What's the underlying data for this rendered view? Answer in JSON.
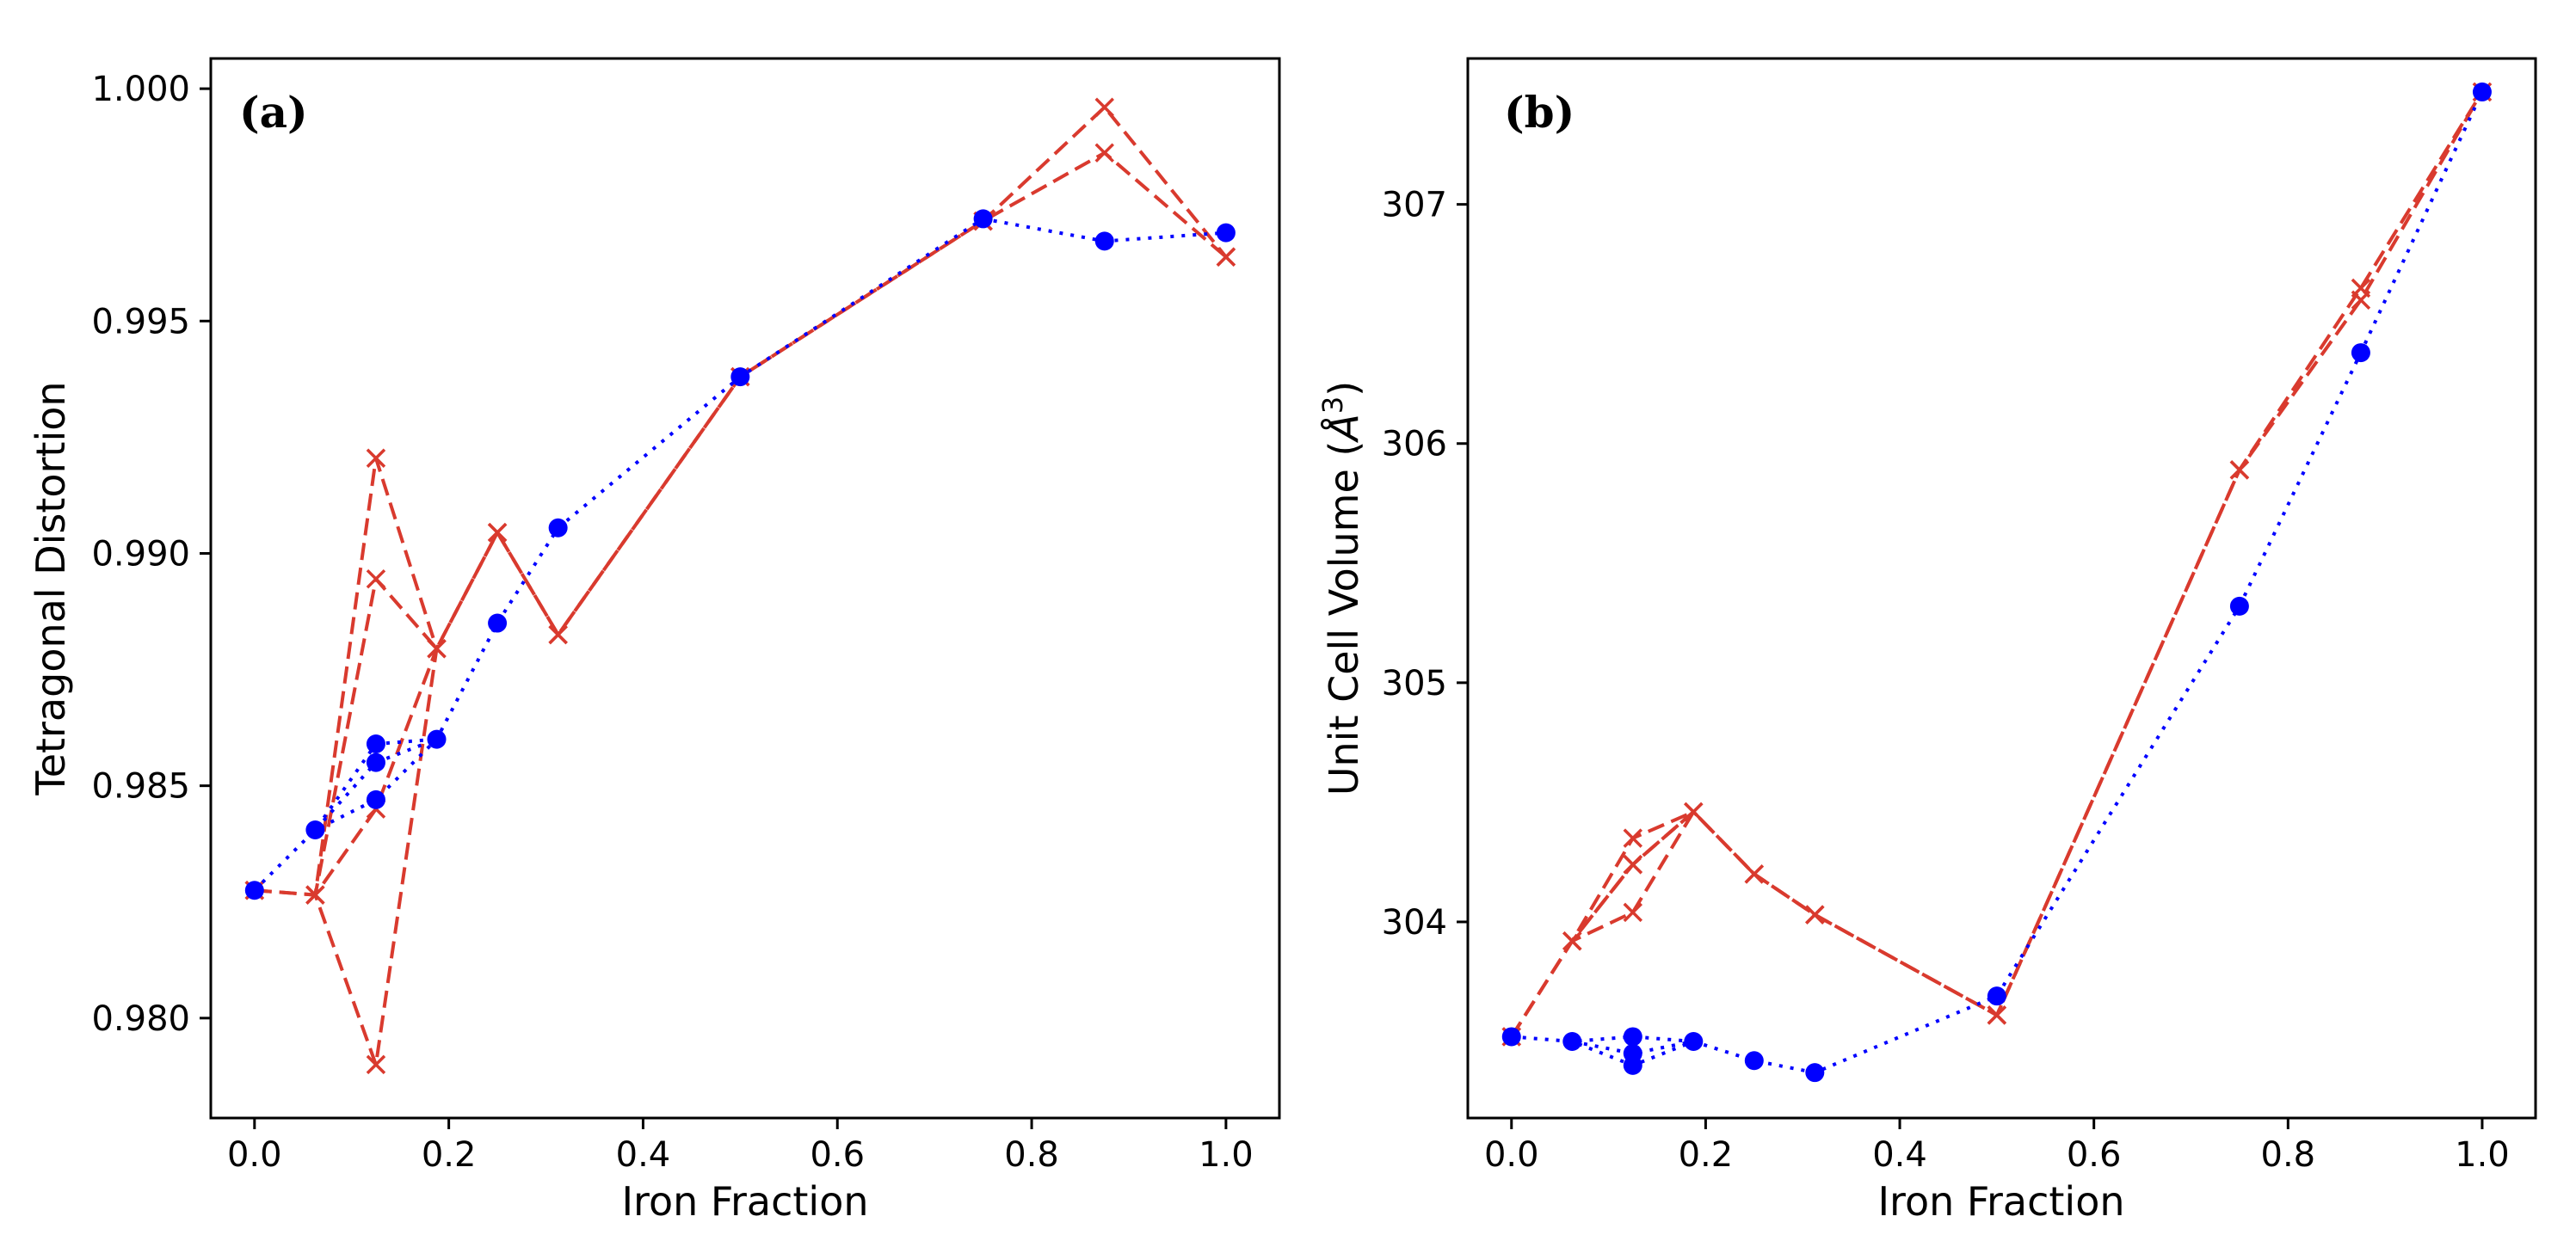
{
  "chart_data": [
    {
      "id": "a",
      "type": "line",
      "panel_label": "(a)",
      "xlabel": "Iron Fraction",
      "ylabel": "Tetragonal Distortion",
      "xlim": [
        -0.045,
        1.055
      ],
      "ylim": [
        0.97785,
        1.00065
      ],
      "xticks": [
        0.0,
        0.2,
        0.4,
        0.6,
        0.8,
        1.0
      ],
      "xtick_labels": [
        "0.0",
        "0.2",
        "0.4",
        "0.6",
        "0.8",
        "1.0"
      ],
      "yticks": [
        0.98,
        0.985,
        0.99,
        0.995,
        1.0
      ],
      "ytick_labels": [
        "0.980",
        "0.985",
        "0.990",
        "0.995",
        "1.000"
      ],
      "series": [
        {
          "name": "blue circles",
          "color": "#0000ff",
          "marker": "circle",
          "linestyle": "dotted",
          "points": [
            [
              0.0,
              0.98275
            ],
            [
              0.0625,
              0.98405
            ],
            [
              0.125,
              0.9859
            ],
            [
              0.1875,
              0.986
            ],
            [
              0.125,
              0.9855
            ],
            [
              0.0625,
              0.98405
            ],
            [
              0.125,
              0.9847
            ],
            [
              0.1875,
              0.986
            ],
            [
              0.25,
              0.9885
            ],
            [
              0.3125,
              0.99055
            ],
            [
              0.5,
              0.9938
            ],
            [
              0.75,
              0.9972
            ],
            [
              0.875,
              0.99672
            ],
            [
              1.0,
              0.9969
            ]
          ]
        },
        {
          "name": "red crosses (path 1)",
          "color": "#d93a2e",
          "marker": "x",
          "linestyle": "dashed",
          "points": [
            [
              0.0,
              0.98275
            ],
            [
              0.0625,
              0.98265
            ],
            [
              0.125,
              0.99205
            ],
            [
              0.1875,
              0.98795
            ],
            [
              0.125,
              0.979
            ],
            [
              0.0625,
              0.98265
            ],
            [
              0.125,
              0.98945
            ],
            [
              0.1875,
              0.98795
            ],
            [
              0.25,
              0.99045
            ],
            [
              0.3125,
              0.98825
            ],
            [
              0.5,
              0.9938
            ],
            [
              0.75,
              0.99715
            ],
            [
              0.875,
              0.9996
            ],
            [
              1.0,
              0.99638
            ]
          ]
        },
        {
          "name": "red crosses (path 2)",
          "color": "#d93a2e",
          "marker": "x",
          "linestyle": "dashed",
          "points": [
            [
              0.0,
              0.98275
            ],
            [
              0.0625,
              0.98265
            ],
            [
              0.125,
              0.9845
            ],
            [
              0.1875,
              0.98795
            ],
            [
              0.25,
              0.99045
            ],
            [
              0.3125,
              0.98825
            ],
            [
              0.5,
              0.9938
            ],
            [
              0.75,
              0.99715
            ],
            [
              0.875,
              0.99862
            ],
            [
              1.0,
              0.99638
            ]
          ]
        }
      ]
    },
    {
      "id": "b",
      "type": "line",
      "panel_label": "(b)",
      "xlabel": "Iron Fraction",
      "ylabel": "Unit Cell Volume (Å³)",
      "ylabel_main": "Unit Cell Volume (",
      "ylabel_unit": "Å",
      "ylabel_exp": "3",
      "ylabel_close": ")",
      "xlim": [
        -0.045,
        1.055
      ],
      "ylim": [
        303.18,
        307.61
      ],
      "xticks": [
        0.0,
        0.2,
        0.4,
        0.6,
        0.8,
        1.0
      ],
      "xtick_labels": [
        "0.0",
        "0.2",
        "0.4",
        "0.6",
        "0.8",
        "1.0"
      ],
      "yticks": [
        304,
        305,
        306,
        307
      ],
      "ytick_labels": [
        "304",
        "305",
        "306",
        "307"
      ],
      "series": [
        {
          "name": "blue circles",
          "color": "#0000ff",
          "marker": "circle",
          "linestyle": "dotted",
          "points": [
            [
              0.0,
              303.52
            ],
            [
              0.0625,
              303.5
            ],
            [
              0.125,
              303.52
            ],
            [
              0.1875,
              303.5
            ],
            [
              0.125,
              303.45
            ],
            [
              0.0625,
              303.5
            ],
            [
              0.125,
              303.4
            ],
            [
              0.1875,
              303.5
            ],
            [
              0.25,
              303.42
            ],
            [
              0.3125,
              303.37
            ],
            [
              0.5,
              303.69
            ],
            [
              0.75,
              305.32
            ],
            [
              0.875,
              306.38
            ],
            [
              1.0,
              307.47
            ]
          ]
        },
        {
          "name": "red crosses (path 1)",
          "color": "#d93a2e",
          "marker": "x",
          "linestyle": "dashed",
          "points": [
            [
              0.0,
              303.52
            ],
            [
              0.0625,
              303.92
            ],
            [
              0.125,
              304.35
            ],
            [
              0.1875,
              304.46
            ],
            [
              0.125,
              304.04
            ],
            [
              0.0625,
              303.92
            ],
            [
              0.125,
              304.24
            ],
            [
              0.1875,
              304.46
            ],
            [
              0.25,
              304.2
            ],
            [
              0.3125,
              304.03
            ],
            [
              0.5,
              303.61
            ],
            [
              0.75,
              305.89
            ],
            [
              0.875,
              306.65
            ],
            [
              1.0,
              307.47
            ]
          ]
        },
        {
          "name": "red crosses (path 2)",
          "color": "#d93a2e",
          "marker": "x",
          "linestyle": "dashed",
          "points": [
            [
              0.0,
              303.52
            ],
            [
              0.0625,
              303.92
            ],
            [
              0.125,
              304.24
            ],
            [
              0.1875,
              304.46
            ],
            [
              0.25,
              304.2
            ],
            [
              0.3125,
              304.03
            ],
            [
              0.5,
              303.61
            ],
            [
              0.75,
              305.89
            ],
            [
              0.875,
              306.6
            ],
            [
              1.0,
              307.47
            ]
          ]
        }
      ]
    }
  ]
}
